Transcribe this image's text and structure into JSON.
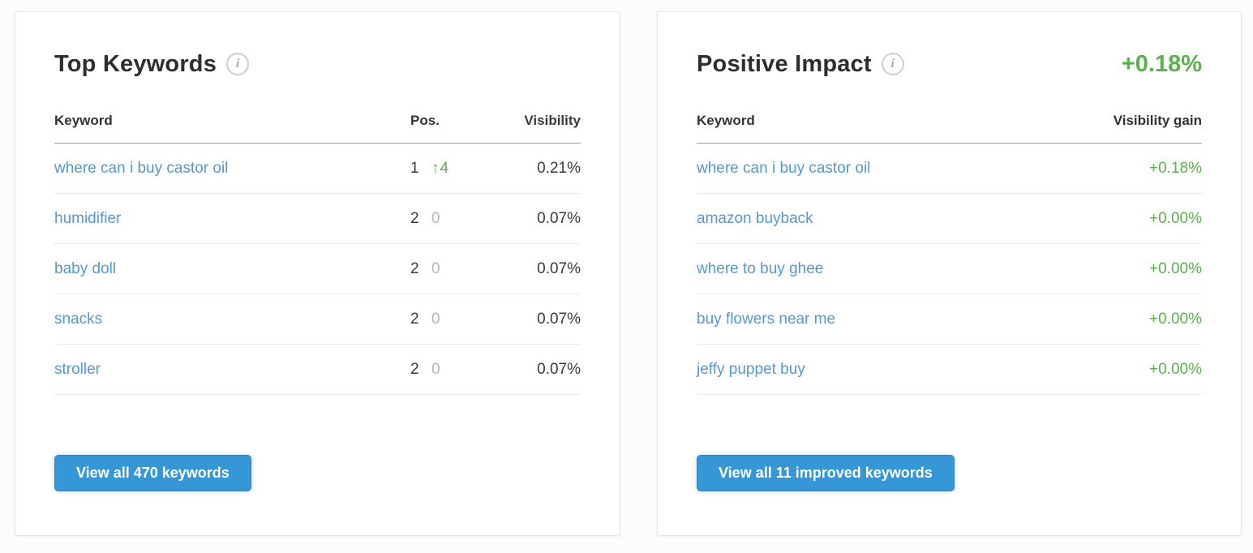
{
  "icons": {
    "info_glyph": "i",
    "up_arrow_glyph": "↑"
  },
  "colors": {
    "link_blue": "#5499d1",
    "button_blue": "#3597d6",
    "positive_green": "#5cb050",
    "neutral_gray": "#b6b6b6"
  },
  "top_keywords": {
    "title": "Top Keywords",
    "columns": {
      "keyword": "Keyword",
      "pos": "Pos.",
      "visibility": "Visibility"
    },
    "rows": [
      {
        "keyword": "where can i buy castor oil",
        "pos": "1",
        "change_type": "up",
        "change_arrow": "↑",
        "change_value": "4",
        "visibility": "0.21%"
      },
      {
        "keyword": "humidifier",
        "pos": "2",
        "change_type": "zero",
        "change_value": "0",
        "visibility": "0.07%"
      },
      {
        "keyword": "baby doll",
        "pos": "2",
        "change_type": "zero",
        "change_value": "0",
        "visibility": "0.07%"
      },
      {
        "keyword": "snacks",
        "pos": "2",
        "change_type": "zero",
        "change_value": "0",
        "visibility": "0.07%"
      },
      {
        "keyword": "stroller",
        "pos": "2",
        "change_type": "zero",
        "change_value": "0",
        "visibility": "0.07%"
      }
    ],
    "button_label": "View all 470 keywords"
  },
  "positive_impact": {
    "title": "Positive Impact",
    "total_gain": "+0.18%",
    "columns": {
      "keyword": "Keyword",
      "gain": "Visibility gain"
    },
    "rows": [
      {
        "keyword": "where can i buy castor oil",
        "gain": "+0.18%"
      },
      {
        "keyword": "amazon buyback",
        "gain": "+0.00%"
      },
      {
        "keyword": "where to buy ghee",
        "gain": "+0.00%"
      },
      {
        "keyword": "buy flowers near me",
        "gain": "+0.00%"
      },
      {
        "keyword": "jeffy puppet buy",
        "gain": "+0.00%"
      }
    ],
    "button_label": "View all 11 improved keywords"
  }
}
